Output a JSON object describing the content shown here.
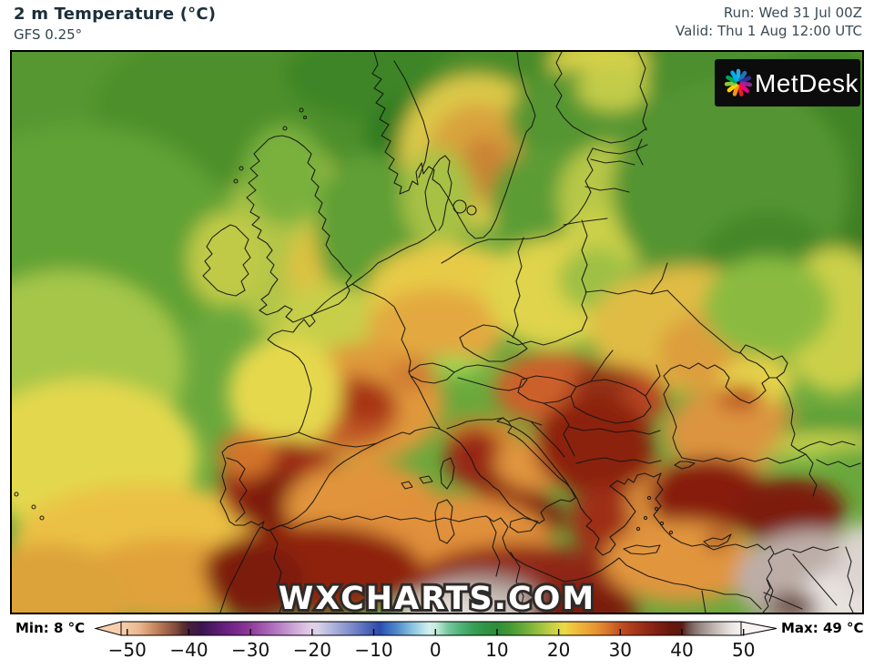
{
  "header": {
    "title": "2 m Temperature (°C)",
    "model": "GFS 0.25°",
    "run": "Run: Wed 31 Jul 00Z",
    "valid": "Valid: Thu 1 Aug 12:00 UTC"
  },
  "map": {
    "watermark": "WXCHARTS.COM",
    "logo_text": "MetDesk",
    "description": "Filled-contour 2 m temperature forecast map of Europe and North Africa"
  },
  "colorbar": {
    "min_label": "Min: 8 °C",
    "max_label": "Max: 49 °C",
    "unit": "°C",
    "domain": [
      -51,
      49.6
    ],
    "ticks": [
      {
        "v": -50,
        "label": "−50"
      },
      {
        "v": -40,
        "label": "−40"
      },
      {
        "v": -30,
        "label": "−30"
      },
      {
        "v": -20,
        "label": "−20"
      },
      {
        "v": -10,
        "label": "−10"
      },
      {
        "v": 0,
        "label": "0"
      },
      {
        "v": 10,
        "label": "10"
      },
      {
        "v": 20,
        "label": "20"
      },
      {
        "v": 30,
        "label": "30"
      },
      {
        "v": 40,
        "label": "40"
      },
      {
        "v": 50,
        "label": "50"
      }
    ],
    "stops": [
      [
        -51,
        "#f6d0ae"
      ],
      [
        -48,
        "#eab68f"
      ],
      [
        -46,
        "#cf9068"
      ],
      [
        -44,
        "#a96a4f"
      ],
      [
        -42,
        "#7e4a3a"
      ],
      [
        -41,
        "#5c3030"
      ],
      [
        -40,
        "#46203c"
      ],
      [
        -38,
        "#3c1450"
      ],
      [
        -36,
        "#521a68"
      ],
      [
        -34,
        "#68207e"
      ],
      [
        -32,
        "#7c2a8e"
      ],
      [
        -30,
        "#8f3c9c"
      ],
      [
        -28,
        "#a158ae"
      ],
      [
        -26,
        "#b274c0"
      ],
      [
        -24,
        "#c494ce"
      ],
      [
        -22,
        "#d6b4de"
      ],
      [
        -20,
        "#e2d0ea"
      ],
      [
        -19,
        "#d8d2ea"
      ],
      [
        -18,
        "#c4c4e4"
      ],
      [
        -16,
        "#a4aad8"
      ],
      [
        -14,
        "#8490cc"
      ],
      [
        -12,
        "#5f74c0"
      ],
      [
        -10,
        "#3d56b2"
      ],
      [
        -9,
        "#2a4cae"
      ],
      [
        -8,
        "#3566bc"
      ],
      [
        -6,
        "#5590cc"
      ],
      [
        -4,
        "#84bede"
      ],
      [
        -2,
        "#b8e2ec"
      ],
      [
        -1,
        "#d2f0f0"
      ],
      [
        0,
        "#c8ecdc"
      ],
      [
        1,
        "#a0dcc0"
      ],
      [
        2,
        "#78c8a0"
      ],
      [
        4,
        "#50b478"
      ],
      [
        6,
        "#3aa058"
      ],
      [
        8,
        "#2f9446"
      ],
      [
        10,
        "#2f8c3a"
      ],
      [
        12,
        "#429834"
      ],
      [
        14,
        "#62a838"
      ],
      [
        16,
        "#8aba3c"
      ],
      [
        18,
        "#b2ca40"
      ],
      [
        20,
        "#dcd846"
      ],
      [
        21,
        "#ecd846"
      ],
      [
        22,
        "#f0c83e"
      ],
      [
        24,
        "#eeae38"
      ],
      [
        26,
        "#e89434"
      ],
      [
        28,
        "#d8742c"
      ],
      [
        30,
        "#c25022"
      ],
      [
        32,
        "#ac3a1c"
      ],
      [
        34,
        "#962c16"
      ],
      [
        36,
        "#802012"
      ],
      [
        38,
        "#6a180e"
      ],
      [
        40,
        "#5c1810"
      ],
      [
        41,
        "#6b4f48"
      ],
      [
        42,
        "#837068"
      ],
      [
        43,
        "#998884"
      ],
      [
        44,
        "#ab9d98"
      ],
      [
        45,
        "#bcb1ac"
      ],
      [
        46,
        "#ccc3bf"
      ],
      [
        47,
        "#dbd4d1"
      ],
      [
        48,
        "#e9e4e2"
      ],
      [
        49.6,
        "#f6f3f2"
      ]
    ]
  }
}
